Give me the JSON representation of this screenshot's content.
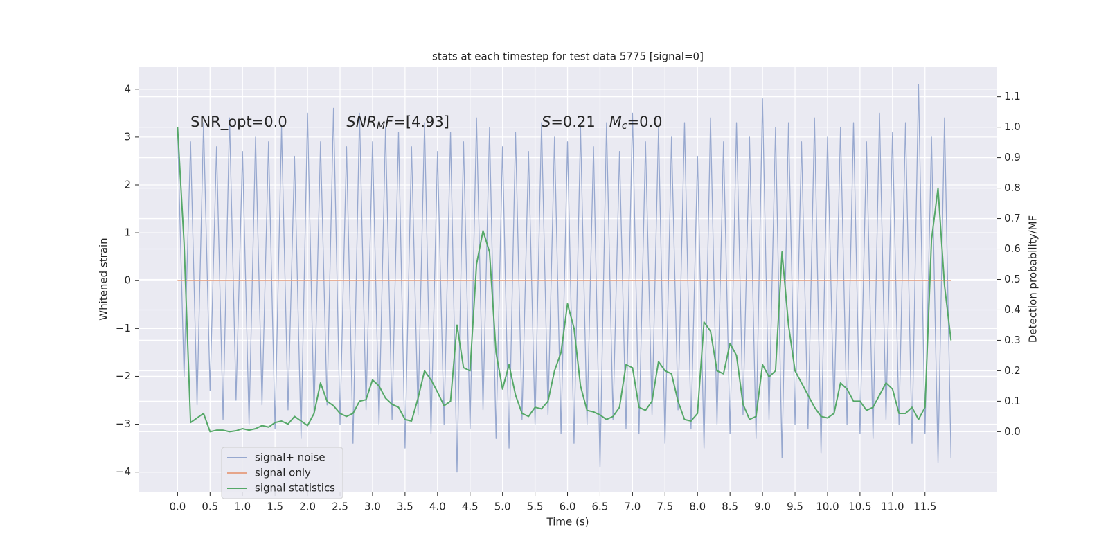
{
  "chart_data": {
    "type": "line",
    "title": "stats at each timestep for test data 5775 [signal=0]",
    "x_label": "Time (s)",
    "y_label": "Whitened strain",
    "y2_label": "Detection probability/MF",
    "annotations": [
      [
        {
          "text": "SNR_opt=0.0",
          "italic": false,
          "sub": false
        }
      ],
      [
        {
          "text": "SNR",
          "italic": true,
          "sub": false
        },
        {
          "text": "M",
          "italic": true,
          "sub": true
        },
        {
          "text": "F",
          "italic": true,
          "sub": false
        },
        {
          "text": "=[4.93]",
          "italic": false,
          "sub": false
        }
      ],
      [
        {
          "text": "S",
          "italic": true,
          "sub": false
        },
        {
          "text": "=0.21   ",
          "italic": false,
          "sub": false
        },
        {
          "text": "M",
          "italic": true,
          "sub": false
        },
        {
          "text": "c",
          "italic": true,
          "sub": true
        },
        {
          "text": "=0.0",
          "italic": false,
          "sub": false
        }
      ]
    ],
    "legend": "lower left",
    "grid": true,
    "background": "#eaeaf2",
    "x": [
      0,
      0.1,
      0.2,
      0.3,
      0.4,
      0.5,
      0.6,
      0.7,
      0.8,
      0.9,
      1,
      1.1,
      1.2,
      1.3,
      1.4,
      1.5,
      1.6,
      1.7,
      1.8,
      1.9,
      2,
      2.1,
      2.2,
      2.3,
      2.4,
      2.5,
      2.6,
      2.7,
      2.8,
      2.9,
      3,
      3.1,
      3.2,
      3.3,
      3.4,
      3.5,
      3.6,
      3.7,
      3.8,
      3.9,
      4,
      4.1,
      4.2,
      4.3,
      4.4,
      4.5,
      4.6,
      4.7,
      4.8,
      4.9,
      5,
      5.1,
      5.2,
      5.3,
      5.4,
      5.5,
      5.6,
      5.7,
      5.8,
      5.9,
      6,
      6.1,
      6.2,
      6.3,
      6.4,
      6.5,
      6.6,
      6.7,
      6.8,
      6.9,
      7,
      7.1,
      7.2,
      7.3,
      7.4,
      7.5,
      7.6,
      7.7,
      7.8,
      7.9,
      8,
      8.1,
      8.2,
      8.3,
      8.4,
      8.5,
      8.6,
      8.7,
      8.8,
      8.9,
      9,
      9.1,
      9.2,
      9.3,
      9.4,
      9.5,
      9.6,
      9.7,
      9.8,
      9.9,
      10,
      10.1,
      10.2,
      10.3,
      10.4,
      10.5,
      10.6,
      10.7,
      10.8,
      10.9,
      11,
      11.1,
      11.2,
      11.3,
      11.4,
      11.5,
      11.6,
      11.7,
      11.8,
      11.9
    ],
    "series": [
      {
        "name": "signal+ noise",
        "color": "#97a8cf",
        "axis": "y",
        "values": [
          3.2,
          -2.0,
          2.9,
          -2.6,
          3.3,
          -2.3,
          2.8,
          -2.9,
          3.4,
          -2.5,
          2.7,
          -3.0,
          3.0,
          -2.6,
          2.9,
          -3.1,
          3.2,
          -2.7,
          2.6,
          -3.3,
          3.5,
          -2.8,
          2.9,
          -2.6,
          3.6,
          -3.0,
          2.8,
          -3.4,
          3.5,
          -2.7,
          2.9,
          -3.0,
          3.2,
          -2.9,
          3.1,
          -3.5,
          2.8,
          -2.8,
          3.3,
          -3.2,
          2.7,
          -3.0,
          3.1,
          -4.0,
          2.9,
          -3.1,
          3.4,
          -2.7,
          3.2,
          -3.3,
          2.8,
          -3.5,
          3.1,
          -2.9,
          2.7,
          -3.0,
          3.3,
          -2.8,
          3.0,
          -3.2,
          2.9,
          -3.4,
          3.2,
          -3.0,
          2.8,
          -3.9,
          3.3,
          -2.9,
          2.7,
          -3.1,
          3.5,
          -3.2,
          2.9,
          -2.8,
          3.2,
          -3.4,
          3.0,
          -2.7,
          3.3,
          -3.1,
          2.6,
          -3.5,
          3.4,
          -3.0,
          2.9,
          -3.2,
          3.3,
          -2.8,
          3.0,
          -3.3,
          3.8,
          -2.9,
          3.2,
          -3.7,
          3.3,
          -3.0,
          2.9,
          -3.1,
          3.4,
          -3.6,
          3.0,
          -2.8,
          3.2,
          -3.0,
          3.3,
          -3.2,
          2.9,
          -3.3,
          3.5,
          -2.9,
          3.1,
          -3.0,
          3.3,
          -3.4,
          4.1,
          -3.2,
          3.0,
          -3.8,
          3.4,
          -3.7
        ]
      },
      {
        "name": "signal only",
        "color": "#e6a58a",
        "axis": "y",
        "values": [
          0,
          0,
          0,
          0,
          0,
          0,
          0,
          0,
          0,
          0,
          0,
          0,
          0,
          0,
          0,
          0,
          0,
          0,
          0,
          0,
          0,
          0,
          0,
          0,
          0,
          0,
          0,
          0,
          0,
          0,
          0,
          0,
          0,
          0,
          0,
          0,
          0,
          0,
          0,
          0,
          0,
          0,
          0,
          0,
          0,
          0,
          0,
          0,
          0,
          0,
          0,
          0,
          0,
          0,
          0,
          0,
          0,
          0,
          0,
          0,
          0,
          0,
          0,
          0,
          0,
          0,
          0,
          0,
          0,
          0,
          0,
          0,
          0,
          0,
          0,
          0,
          0,
          0,
          0,
          0,
          0,
          0,
          0,
          0,
          0,
          0,
          0,
          0,
          0,
          0,
          0,
          0,
          0,
          0,
          0,
          0,
          0,
          0,
          0,
          0,
          0,
          0,
          0,
          0,
          0,
          0,
          0,
          0,
          0,
          0,
          0,
          0,
          0,
          0,
          0,
          0,
          0,
          0,
          0,
          0
        ]
      },
      {
        "name": "signal statistics",
        "color": "#55a868",
        "axis": "y2",
        "values": [
          1.0,
          0.62,
          0.03,
          0.045,
          0.06,
          0.0,
          0.005,
          0.005,
          0.0,
          0.003,
          0.01,
          0.005,
          0.01,
          0.02,
          0.015,
          0.03,
          0.035,
          0.025,
          0.05,
          0.035,
          0.02,
          0.06,
          0.16,
          0.1,
          0.085,
          0.06,
          0.05,
          0.06,
          0.1,
          0.105,
          0.17,
          0.15,
          0.11,
          0.09,
          0.08,
          0.04,
          0.035,
          0.11,
          0.2,
          0.17,
          0.13,
          0.085,
          0.1,
          0.35,
          0.21,
          0.2,
          0.55,
          0.66,
          0.59,
          0.26,
          0.14,
          0.22,
          0.12,
          0.06,
          0.05,
          0.08,
          0.075,
          0.1,
          0.2,
          0.26,
          0.42,
          0.34,
          0.15,
          0.07,
          0.065,
          0.055,
          0.04,
          0.05,
          0.08,
          0.22,
          0.21,
          0.08,
          0.07,
          0.1,
          0.23,
          0.2,
          0.19,
          0.1,
          0.04,
          0.035,
          0.06,
          0.36,
          0.33,
          0.2,
          0.19,
          0.29,
          0.25,
          0.09,
          0.04,
          0.05,
          0.22,
          0.18,
          0.2,
          0.59,
          0.35,
          0.2,
          0.16,
          0.12,
          0.08,
          0.05,
          0.045,
          0.06,
          0.16,
          0.14,
          0.1,
          0.1,
          0.07,
          0.08,
          0.12,
          0.16,
          0.14,
          0.06,
          0.06,
          0.08,
          0.04,
          0.08,
          0.63,
          0.8,
          0.48,
          0.3
        ]
      }
    ],
    "xlim": [
      -0.59,
      12.6
    ],
    "xticks": [
      {
        "value": 0,
        "label": "0.0"
      },
      0.5,
      {
        "value": 1,
        "label": "1.0"
      },
      1.5,
      {
        "value": 2,
        "label": "2.0"
      },
      2.5,
      {
        "value": 3,
        "label": "3.0"
      },
      3.5,
      {
        "value": 4,
        "label": "4.0"
      },
      4.5,
      {
        "value": 5,
        "label": "5.0"
      },
      5.5,
      {
        "value": 6,
        "label": "6.0"
      },
      6.5,
      {
        "value": 7,
        "label": "7.0"
      },
      7.5,
      {
        "value": 8,
        "label": "8.0"
      },
      8.5,
      {
        "value": 9,
        "label": "9.0"
      },
      9.5,
      {
        "value": 10,
        "label": "10.0"
      },
      10.5,
      {
        "value": 11,
        "label": "11.0"
      },
      11.5
    ],
    "ylim": [
      -4.41,
      4.46
    ],
    "yticks": [
      {
        "value": -4,
        "label": "−4"
      },
      {
        "value": -3,
        "label": "−3"
      },
      {
        "value": -2,
        "label": "−2"
      },
      {
        "value": -1,
        "label": "−1"
      },
      0,
      1,
      2,
      3,
      4
    ],
    "y2lim": [
      -0.197,
      1.197
    ],
    "y2ticks": [
      {
        "value": 0,
        "label": "0.0"
      },
      0.1,
      0.2,
      0.3,
      0.4,
      0.5,
      0.6,
      0.7,
      0.8,
      0.9,
      {
        "value": 1,
        "label": "1.0"
      },
      1.1
    ]
  }
}
